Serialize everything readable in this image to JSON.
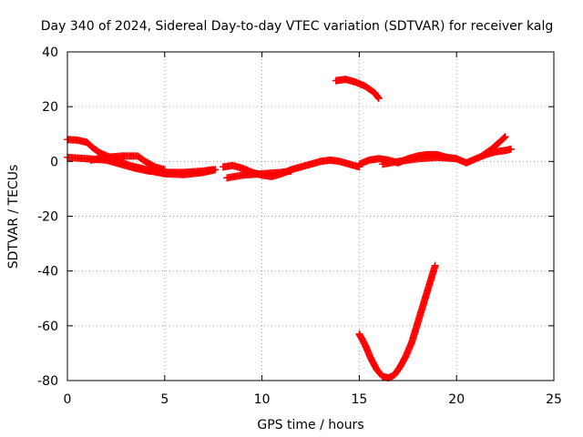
{
  "chart_data": {
    "type": "scatter",
    "title": "Day 340 of 2024, Sidereal Day-to-day VTEC variation (SDTVAR) for receiver kalg",
    "xlabel": "GPS time / hours",
    "ylabel": "SDTVAR / TECUs",
    "xlim": [
      0,
      25
    ],
    "ylim": [
      -80,
      40
    ],
    "xticks": [
      0,
      5,
      10,
      15,
      20,
      25
    ],
    "yticks": [
      -80,
      -60,
      -40,
      -20,
      0,
      20,
      40
    ],
    "grid": true,
    "marker": "plus",
    "color": "#ff0000",
    "series": [
      {
        "name": "trace-a",
        "points": [
          [
            0.0,
            8
          ],
          [
            0.5,
            7.8
          ],
          [
            1.0,
            7
          ],
          [
            1.3,
            5
          ],
          [
            1.7,
            3
          ],
          [
            2.2,
            1.5
          ],
          [
            2.7,
            0
          ],
          [
            3.2,
            -1.5
          ],
          [
            3.8,
            -2.5
          ],
          [
            4.3,
            -3.5
          ],
          [
            5.0,
            -4.5
          ],
          [
            6.0,
            -4.8
          ],
          [
            7.0,
            -4
          ],
          [
            7.6,
            -3
          ]
        ]
      },
      {
        "name": "trace-b",
        "points": [
          [
            0.0,
            1.5
          ],
          [
            1.0,
            1
          ],
          [
            2.0,
            0.5
          ],
          [
            2.5,
            -0.5
          ],
          [
            3.0,
            -1.5
          ],
          [
            3.5,
            -2.5
          ],
          [
            4.2,
            -3.5
          ],
          [
            5.0,
            -4
          ],
          [
            6.0,
            -4
          ],
          [
            7.0,
            -3.5
          ],
          [
            7.5,
            -3
          ]
        ]
      },
      {
        "name": "trace-c",
        "points": [
          [
            1.2,
            0.5
          ],
          [
            2.0,
            1.5
          ],
          [
            2.8,
            2
          ],
          [
            3.6,
            2
          ],
          [
            4.0,
            0
          ],
          [
            4.5,
            -2
          ],
          [
            5.0,
            -3
          ]
        ]
      },
      {
        "name": "trace-d",
        "points": [
          [
            8.0,
            -2
          ],
          [
            8.5,
            -1.5
          ],
          [
            9.0,
            -2.5
          ],
          [
            9.5,
            -4
          ],
          [
            10.0,
            -5
          ],
          [
            10.5,
            -5.5
          ],
          [
            11.0,
            -4.5
          ],
          [
            11.5,
            -3
          ],
          [
            12.0,
            -2
          ],
          [
            12.5,
            -1
          ],
          [
            13.0,
            0
          ],
          [
            13.5,
            0.5
          ],
          [
            14.0,
            0
          ],
          [
            14.5,
            -1
          ],
          [
            15.0,
            -2
          ]
        ]
      },
      {
        "name": "trace-e",
        "points": [
          [
            8.2,
            -6
          ],
          [
            9.0,
            -5
          ],
          [
            10.0,
            -4.5
          ],
          [
            11.0,
            -4
          ],
          [
            11.5,
            -3.5
          ]
        ]
      },
      {
        "name": "trace-f",
        "points": [
          [
            15.0,
            -1
          ],
          [
            15.5,
            0.5
          ],
          [
            16.0,
            1
          ],
          [
            16.5,
            0.5
          ],
          [
            17.0,
            -0.5
          ],
          [
            17.5,
            1
          ],
          [
            18.0,
            2
          ],
          [
            18.5,
            2.5
          ],
          [
            19.0,
            2.5
          ],
          [
            19.5,
            1.5
          ],
          [
            20.0,
            1
          ],
          [
            20.5,
            -0.5
          ],
          [
            21.0,
            1
          ],
          [
            21.5,
            2.5
          ],
          [
            22.0,
            3.5
          ],
          [
            22.5,
            4
          ],
          [
            22.8,
            4.5
          ]
        ]
      },
      {
        "name": "trace-g",
        "points": [
          [
            16.2,
            -1
          ],
          [
            17.0,
            0
          ],
          [
            18.0,
            1
          ],
          [
            19.0,
            1.5
          ],
          [
            20.0,
            1
          ]
        ]
      },
      {
        "name": "trace-h",
        "points": [
          [
            21.3,
            2
          ],
          [
            21.8,
            4.5
          ],
          [
            22.2,
            7
          ],
          [
            22.5,
            9
          ]
        ]
      },
      {
        "name": "trace-i",
        "points": [
          [
            13.8,
            29.5
          ],
          [
            14.3,
            30
          ],
          [
            14.8,
            29
          ],
          [
            15.3,
            27.5
          ],
          [
            15.8,
            25
          ],
          [
            16.0,
            23
          ]
        ]
      },
      {
        "name": "trace-j",
        "points": [
          [
            15.0,
            -63
          ],
          [
            15.3,
            -67
          ],
          [
            15.6,
            -72
          ],
          [
            15.9,
            -76
          ],
          [
            16.2,
            -78.5
          ],
          [
            16.5,
            -79
          ],
          [
            16.8,
            -78
          ],
          [
            17.1,
            -75
          ],
          [
            17.4,
            -71
          ],
          [
            17.7,
            -66
          ],
          [
            18.0,
            -59
          ],
          [
            18.3,
            -52
          ],
          [
            18.6,
            -45
          ],
          [
            18.9,
            -38
          ]
        ]
      }
    ]
  }
}
